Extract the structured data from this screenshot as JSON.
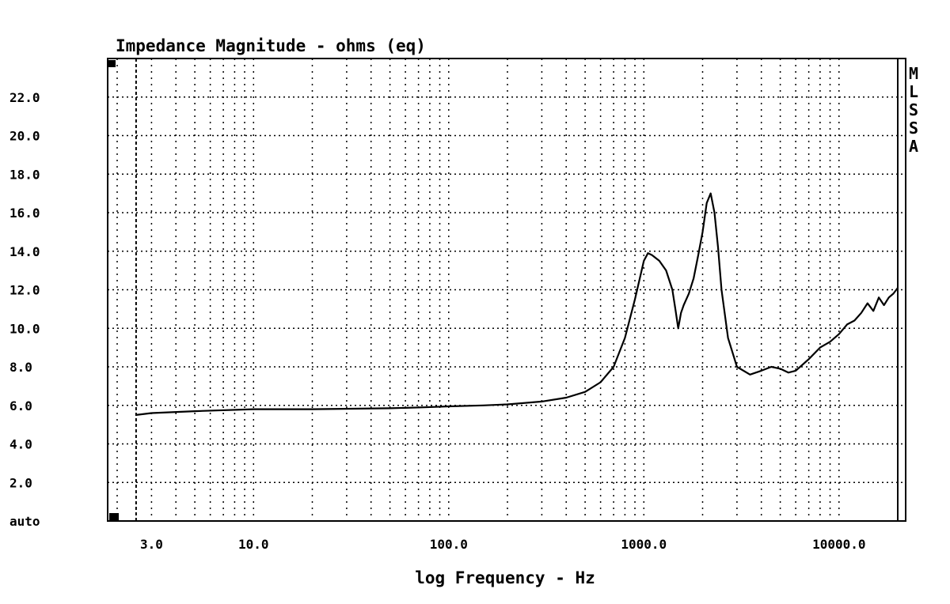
{
  "chart_data": {
    "type": "line",
    "title": "Impedance Magnitude - ohms (eq)",
    "xlabel": "log Frequency - Hz",
    "ylabel": "",
    "x_scale": "log",
    "xlim": [
      2.0,
      20000
    ],
    "ylim": [
      0,
      24
    ],
    "grid": true,
    "x_tick_values": [
      3,
      10,
      100,
      1000,
      10000
    ],
    "x_tick_labels": [
      "3.0",
      "10.0",
      "100.0",
      "1000.0",
      "10000.0"
    ],
    "y_tick_values": [
      0,
      2,
      4,
      6,
      8,
      10,
      12,
      14,
      16,
      18,
      20,
      22
    ],
    "y_tick_labels": [
      "auto",
      "2.0",
      "4.0",
      "6.0",
      "8.0",
      "10.0",
      "12.0",
      "14.0",
      "16.0",
      "18.0",
      "20.0",
      "22.0"
    ],
    "side_label": [
      "M",
      "L",
      "S",
      "S",
      "A"
    ],
    "series": [
      {
        "color": "#000000",
        "x": [
          2.5,
          3,
          5,
          10,
          20,
          50,
          75,
          100,
          150,
          200,
          300,
          400,
          500,
          600,
          700,
          800,
          900,
          1000,
          1050,
          1100,
          1200,
          1300,
          1400,
          1450,
          1500,
          1550,
          1600,
          1700,
          1800,
          1900,
          2000,
          2100,
          2200,
          2300,
          2400,
          2500,
          2700,
          3000,
          3500,
          4000,
          4500,
          5000,
          5500,
          6000,
          7000,
          8000,
          9000,
          10000,
          11000,
          12000,
          13000,
          14000,
          15000,
          16000,
          17000,
          18000,
          19000,
          20000
        ],
        "y": [
          5.5,
          5.6,
          5.7,
          5.8,
          5.8,
          5.85,
          5.9,
          5.95,
          6.0,
          6.05,
          6.2,
          6.4,
          6.7,
          7.2,
          8.0,
          9.5,
          11.5,
          13.5,
          13.9,
          13.8,
          13.5,
          13.0,
          12.0,
          11.0,
          10.0,
          10.8,
          11.2,
          11.8,
          12.6,
          13.8,
          15.0,
          16.5,
          17.0,
          16.0,
          14.2,
          12.0,
          9.5,
          8.0,
          7.6,
          7.8,
          8.0,
          7.9,
          7.7,
          7.8,
          8.4,
          9.0,
          9.3,
          9.7,
          10.2,
          10.4,
          10.8,
          11.3,
          10.9,
          11.6,
          11.2,
          11.6,
          11.8,
          12.1
        ]
      }
    ]
  }
}
